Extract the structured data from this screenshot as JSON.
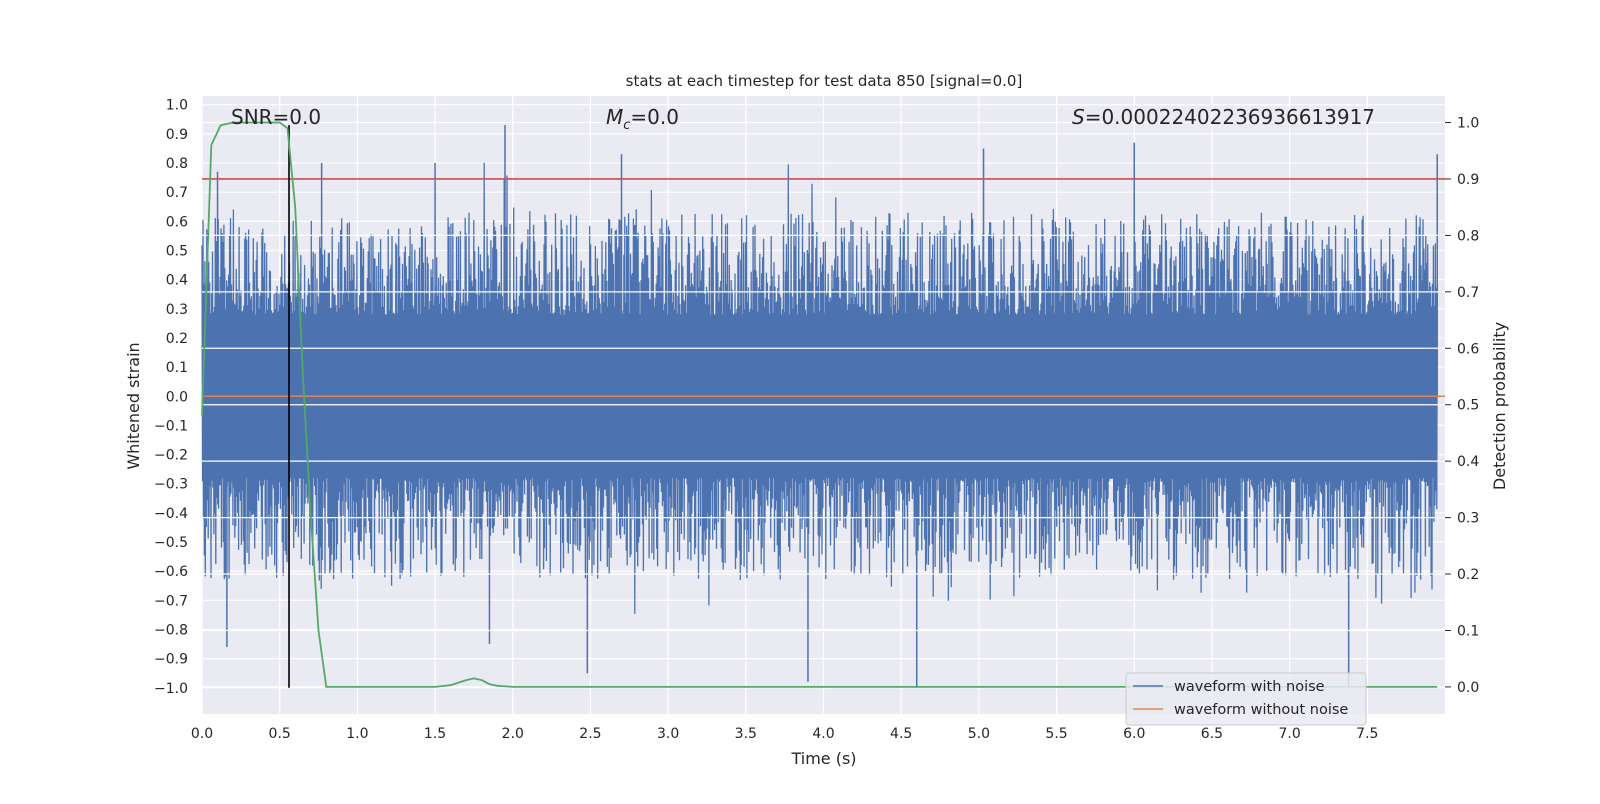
{
  "chart_data": {
    "type": "line",
    "title": "stats at each timestep for test data 850 [signal=0.0]",
    "xlabel": "Time (s)",
    "ylabel": "Whitened strain",
    "y2label": "Detection probability",
    "xlim": [
      0.0,
      8.0
    ],
    "ylim": [
      -1.09,
      1.03
    ],
    "y2lim": [
      -0.048,
      1.047
    ],
    "xticks": [
      "0.0",
      "0.5",
      "1.0",
      "1.5",
      "2.0",
      "2.5",
      "3.0",
      "3.5",
      "4.0",
      "4.5",
      "5.0",
      "5.5",
      "6.0",
      "6.5",
      "7.0",
      "7.5"
    ],
    "yticks": [
      "1.0",
      "0.9",
      "0.8",
      "0.7",
      "0.6",
      "0.5",
      "0.4",
      "0.3",
      "0.2",
      "0.1",
      "0.0",
      "−0.1",
      "−0.2",
      "−0.3",
      "−0.4",
      "−0.5",
      "−0.6",
      "−0.7",
      "−0.8",
      "−0.9",
      "−1.0"
    ],
    "y2ticks": [
      "1.0",
      "0.9",
      "0.8",
      "0.7",
      "0.6",
      "0.5",
      "0.4",
      "0.3",
      "0.2",
      "0.1",
      "0.0"
    ],
    "grid": true,
    "legend_position": "lower-right",
    "annotations": {
      "snr": "SNR=0.0",
      "mc": "=0.0",
      "mc_symbol": "M",
      "mc_sub": "c",
      "s": "=0.00022402236936613917",
      "s_symbol": "S"
    },
    "series": [
      {
        "name": "waveform with noise",
        "color": "#4c72b0",
        "axis": "left",
        "note_range": [
          -1.0,
          0.93
        ],
        "peaks": [
          {
            "x": 0.1,
            "y": 0.77
          },
          {
            "x": 0.77,
            "y": 0.8
          },
          {
            "x": 1.5,
            "y": 0.8
          },
          {
            "x": 1.95,
            "y": 0.93
          },
          {
            "x": 2.7,
            "y": 0.83
          },
          {
            "x": 5.03,
            "y": 0.85
          },
          {
            "x": 6.0,
            "y": 0.87
          },
          {
            "x": 7.95,
            "y": 0.83
          },
          {
            "x": 0.16,
            "y": -0.86
          },
          {
            "x": 1.85,
            "y": -0.85
          },
          {
            "x": 2.48,
            "y": -0.95
          },
          {
            "x": 3.9,
            "y": -0.98
          },
          {
            "x": 4.6,
            "y": -1.0
          },
          {
            "x": 7.38,
            "y": -1.0
          }
        ]
      },
      {
        "name": "waveform without noise",
        "color": "#dd8452",
        "axis": "left",
        "x": [
          0.0,
          8.0
        ],
        "y": [
          0.0,
          0.0
        ]
      },
      {
        "name": "",
        "color": "#55a868",
        "axis": "right",
        "x": [
          0.0,
          0.06,
          0.12,
          0.2,
          0.3,
          0.4,
          0.5,
          0.55,
          0.6,
          0.65,
          0.7,
          0.75,
          0.8,
          0.9,
          1.0,
          1.2,
          1.5,
          1.6,
          1.7,
          1.75,
          1.8,
          1.85,
          1.9,
          2.0,
          2.2,
          3.0,
          4.0,
          5.0,
          6.0,
          7.0,
          7.95
        ],
        "y": [
          0.48,
          0.96,
          0.995,
          1.0,
          1.0,
          1.0,
          1.0,
          0.99,
          0.85,
          0.55,
          0.3,
          0.1,
          0.0,
          0.0,
          0.0,
          0.0,
          0.0,
          0.003,
          0.012,
          0.015,
          0.012,
          0.005,
          0.002,
          0.0,
          0.0,
          0.0,
          0.0,
          0.0,
          0.0,
          0.0,
          0.0
        ]
      }
    ],
    "reference_lines": [
      {
        "type": "horizontal",
        "axis": "right",
        "y": 0.9,
        "color": "#c44e52"
      },
      {
        "type": "vertical",
        "x": 0.56,
        "y_range": [
          -1.0,
          0.93
        ],
        "color": "#000000"
      }
    ]
  }
}
